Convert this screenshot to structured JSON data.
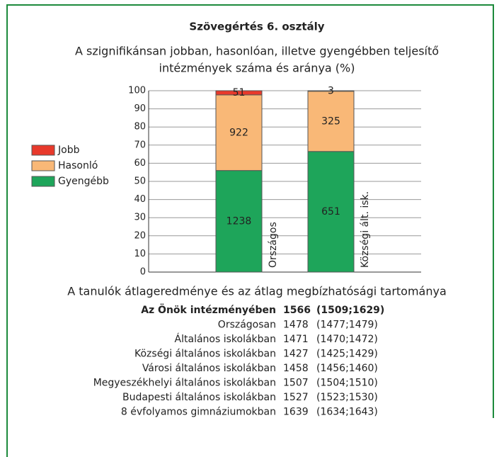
{
  "chart_data": {
    "type": "bar",
    "stacking": "percent",
    "title": "Szövegértés 6. osztály",
    "subtitle": [
      "A szignifikánsan jobban, hasonlóan, illetve gyengébben teljesítő",
      "intézmények száma és aránya (%)"
    ],
    "categories": [
      "Országos",
      "Községi ált. isk."
    ],
    "series": [
      {
        "name": "Gyengébb",
        "color": "#1ea55a",
        "values": [
          1238,
          651
        ]
      },
      {
        "name": "Hasonló",
        "color": "#f9b877",
        "values": [
          922,
          325
        ]
      },
      {
        "name": "Jobb",
        "color": "#e8392b",
        "values": [
          51,
          3
        ]
      }
    ],
    "ylim": [
      0,
      100
    ],
    "yticks": [
      0,
      10,
      20,
      30,
      40,
      50,
      60,
      70,
      80,
      90,
      100
    ],
    "grid": true
  },
  "table": {
    "caption": "A tanulók átlageredménye és az átlag megbízhatósági tartománya",
    "rows": [
      [
        "Az Önök intézményében",
        "1566",
        "(1509;1629)"
      ],
      [
        "Országosan",
        "1478",
        "(1477;1479)"
      ],
      [
        "Általános iskolákban",
        "1471",
        "(1470;1472)"
      ],
      [
        "Községi általános iskolákban",
        "1427",
        "(1425;1429)"
      ],
      [
        "Városi általános iskolákban",
        "1458",
        "(1456;1460)"
      ],
      [
        "Megyeszékhelyi általános iskolákban",
        "1507",
        "(1504;1510)"
      ],
      [
        "Budapesti általános iskolákban",
        "1527",
        "(1523;1530)"
      ],
      [
        "8 évfolyamos gimnáziumokban",
        "1639",
        "(1634;1643)"
      ]
    ]
  }
}
